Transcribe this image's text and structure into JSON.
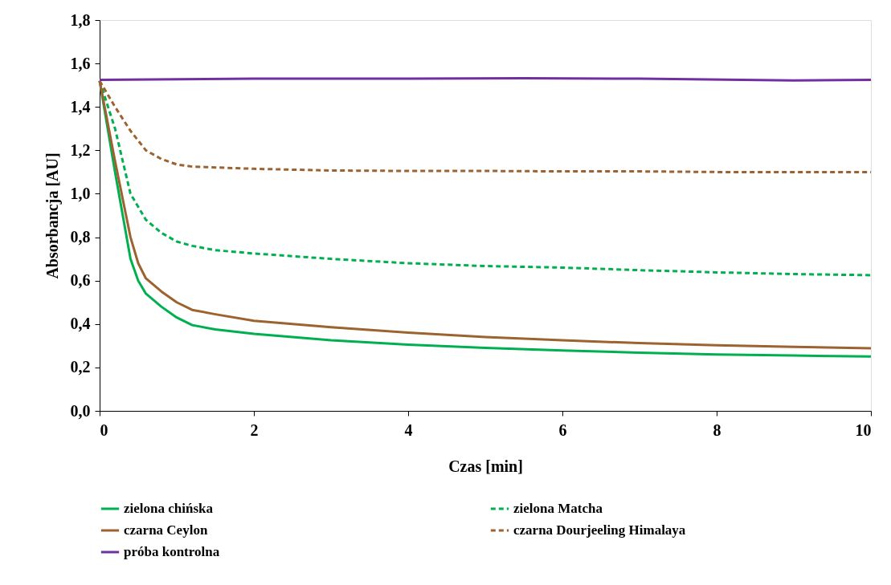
{
  "chart_data": {
    "type": "line",
    "xlabel": "Czas [min]",
    "ylabel": "Absorbancja [AU]",
    "xlim": [
      0,
      10
    ],
    "xticks": [
      0,
      2,
      4,
      6,
      8,
      10
    ],
    "ylim": [
      0,
      1.8
    ],
    "yticks": [
      {
        "value": 0,
        "label": "0,0"
      },
      {
        "value": 0.2,
        "label": "0,2"
      },
      {
        "value": 0.4,
        "label": "0,4"
      },
      {
        "value": 0.6,
        "label": "0,6"
      },
      {
        "value": 0.8,
        "label": "0,8"
      },
      {
        "value": 1.0,
        "label": "1,0"
      },
      {
        "value": 1.2,
        "label": "1,2"
      },
      {
        "value": 1.4,
        "label": "1,4"
      },
      {
        "value": 1.6,
        "label": "1,6"
      },
      {
        "value": 1.8,
        "label": "1,8"
      }
    ],
    "grid": false,
    "legend": "bottom",
    "marker": "none",
    "series": [
      {
        "name": "zielona chińska",
        "color": "#00b050",
        "line_style": "solid",
        "x": [
          0,
          0.2,
          0.4,
          0.5,
          0.6,
          0.8,
          1.0,
          1.2,
          1.5,
          2,
          3,
          4,
          5,
          6,
          7,
          8,
          9,
          10
        ],
        "values": [
          1.52,
          1.1,
          0.7,
          0.6,
          0.54,
          0.48,
          0.43,
          0.395,
          0.375,
          0.355,
          0.325,
          0.305,
          0.29,
          0.278,
          0.268,
          0.26,
          0.255,
          0.25
        ]
      },
      {
        "name": "zielona Matcha",
        "color": "#00b050",
        "line_style": "dashed",
        "x": [
          0,
          0.2,
          0.4,
          0.6,
          0.8,
          1.0,
          1.2,
          1.5,
          2,
          3,
          4,
          5,
          6,
          7,
          8,
          9,
          10
        ],
        "values": [
          1.52,
          1.3,
          1.0,
          0.88,
          0.82,
          0.78,
          0.76,
          0.74,
          0.725,
          0.7,
          0.68,
          0.667,
          0.66,
          0.648,
          0.638,
          0.63,
          0.625
        ]
      },
      {
        "name": "czarna Ceylon",
        "color": "#9c6330",
        "line_style": "solid",
        "x": [
          0,
          0.2,
          0.4,
          0.5,
          0.6,
          0.8,
          1.0,
          1.2,
          1.5,
          2,
          3,
          4,
          5,
          6,
          7,
          8,
          9,
          10
        ],
        "values": [
          1.52,
          1.15,
          0.8,
          0.68,
          0.61,
          0.55,
          0.5,
          0.465,
          0.445,
          0.415,
          0.385,
          0.36,
          0.34,
          0.325,
          0.312,
          0.302,
          0.295,
          0.288
        ]
      },
      {
        "name": "czarna Dourjeeling Himalaya",
        "color": "#9c6330",
        "line_style": "dashed",
        "x": [
          0,
          0.2,
          0.4,
          0.6,
          0.8,
          1.0,
          1.2,
          2,
          3,
          4,
          5,
          6,
          7,
          8,
          9,
          10
        ],
        "values": [
          1.52,
          1.4,
          1.29,
          1.2,
          1.16,
          1.135,
          1.125,
          1.115,
          1.107,
          1.105,
          1.105,
          1.103,
          1.103,
          1.1,
          1.1,
          1.1
        ]
      },
      {
        "name": "próba kontrolna",
        "color": "#7030a0",
        "line_style": "solid",
        "x": [
          0,
          2,
          4,
          5.5,
          7,
          9,
          10
        ],
        "values": [
          1.525,
          1.53,
          1.53,
          1.532,
          1.53,
          1.522,
          1.525
        ]
      }
    ]
  }
}
